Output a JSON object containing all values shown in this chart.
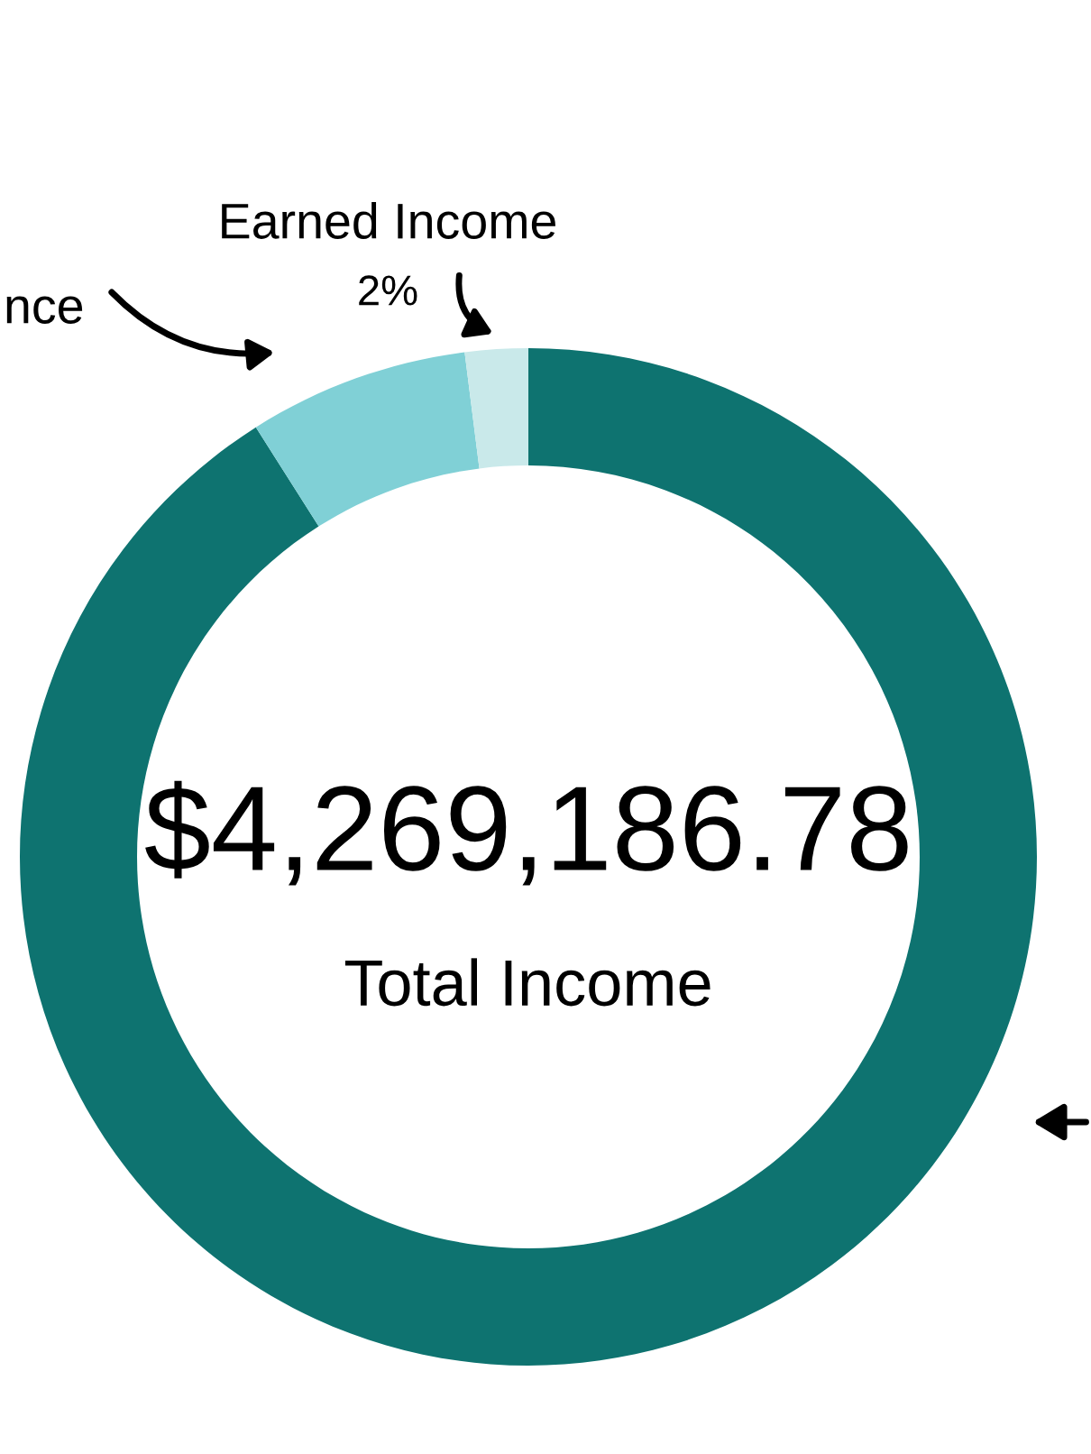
{
  "chart_data": {
    "type": "donut",
    "categories": [
      null,
      "nce",
      "Earned Income"
    ],
    "values": [
      91,
      7,
      2
    ],
    "colors": [
      "#0e7370",
      "#80d0d6",
      "#c9e9ea"
    ],
    "value_labels": [
      null,
      null,
      "2%"
    ],
    "annotations": [
      "$4,269,186.78",
      "Total Income"
    ],
    "legend": false
  }
}
